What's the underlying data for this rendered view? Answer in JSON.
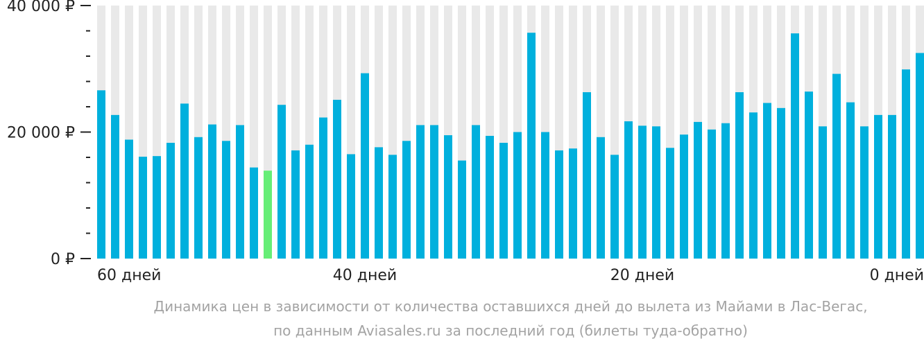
{
  "chart_data": {
    "type": "bar",
    "y_ticks": [
      {
        "value": 0,
        "label": "0 ₽"
      },
      {
        "value": 20000,
        "label": "20 000 ₽"
      },
      {
        "value": 40000,
        "label": "40 000 ₽"
      }
    ],
    "ylim": [
      0,
      40000
    ],
    "x_tick_labels": [
      {
        "days": 60,
        "label": "60 дней"
      },
      {
        "days": 40,
        "label": "40 дней"
      },
      {
        "days": 20,
        "label": "20 дней"
      },
      {
        "days": 0,
        "label": "0 дней"
      }
    ],
    "days": [
      59,
      58,
      57,
      56,
      55,
      54,
      53,
      52,
      51,
      50,
      49,
      48,
      47,
      46,
      45,
      44,
      43,
      42,
      41,
      40,
      39,
      38,
      37,
      36,
      35,
      34,
      33,
      32,
      31,
      30,
      29,
      28,
      27,
      26,
      25,
      24,
      23,
      22,
      21,
      20,
      19,
      18,
      17,
      16,
      15,
      14,
      13,
      12,
      11,
      10,
      9,
      8,
      7,
      6,
      5,
      4,
      3,
      2,
      1,
      0
    ],
    "values": [
      26600,
      22700,
      18800,
      16100,
      16200,
      18300,
      24500,
      19200,
      21200,
      18600,
      21100,
      14400,
      13900,
      24300,
      17100,
      18000,
      22300,
      25100,
      16500,
      29300,
      17600,
      16400,
      18600,
      21100,
      21100,
      19500,
      15500,
      21100,
      19400,
      18300,
      20000,
      35700,
      20000,
      17100,
      17400,
      26300,
      19200,
      16400,
      21700,
      21000,
      20900,
      17500,
      19600,
      21600,
      20400,
      21400,
      26300,
      23100,
      24600,
      23800,
      35600,
      26400,
      20900,
      29200,
      24700,
      20900,
      22700,
      22700,
      29900,
      32500
    ],
    "highlight_index": 12,
    "colors": {
      "bar": "#00b0dd",
      "highlight": "#66ee77",
      "column_bg": "#e9e9e9",
      "axis": "#222222"
    },
    "caption_lines": [
      "Динамика цен в зависимости от количества оставшихся дней до вылета из Майами в Лас-Вегас,",
      "по данным Aviasales.ru за последний год (билеты туда-обратно)"
    ]
  }
}
